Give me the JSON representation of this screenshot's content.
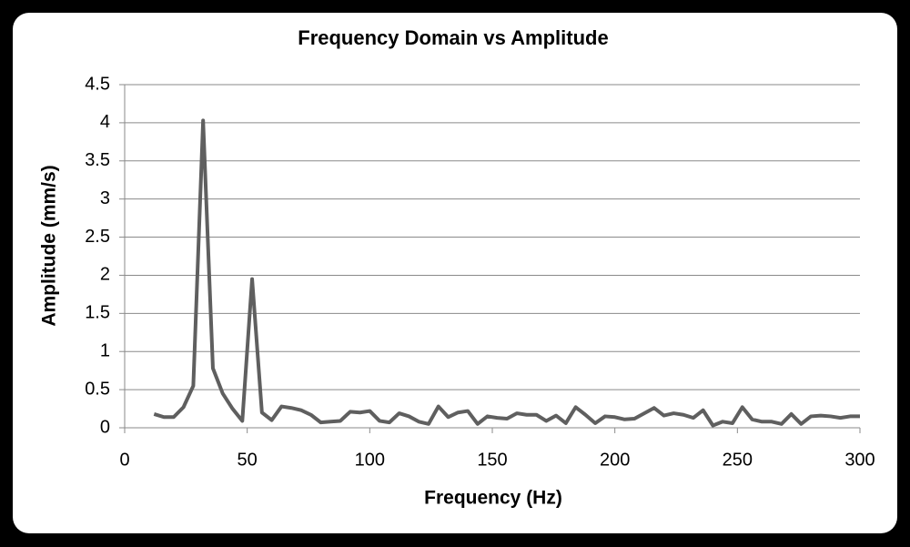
{
  "chart_data": {
    "type": "line",
    "title": "Frequency Domain vs Amplitude",
    "x_label": "Frequency (Hz)",
    "y_label": "Amplitude (mm/s)",
    "xlim": [
      0,
      300
    ],
    "xticks": [
      0,
      50,
      100,
      150,
      200,
      250,
      300
    ],
    "ylim": [
      0,
      4.5
    ],
    "yticks": [
      0,
      0.5,
      1,
      1.5,
      2,
      2.5,
      3,
      3.5,
      4,
      4.5
    ],
    "grid": true,
    "series": [
      {
        "color": "#5f5f5f",
        "x": [
          12,
          16,
          20,
          24,
          28,
          32,
          36,
          40,
          44,
          48,
          52,
          56,
          60,
          64,
          68,
          72,
          76,
          80,
          84,
          88,
          92,
          96,
          100,
          104,
          108,
          112,
          116,
          120,
          124,
          128,
          132,
          136,
          140,
          144,
          148,
          152,
          156,
          160,
          164,
          168,
          172,
          176,
          180,
          184,
          188,
          192,
          196,
          200,
          204,
          208,
          212,
          216,
          220,
          224,
          228,
          232,
          236,
          240,
          244,
          248,
          252,
          256,
          260,
          264,
          268,
          272,
          276,
          280,
          284,
          288,
          292,
          296,
          300
        ],
        "values": [
          0.18,
          0.14,
          0.14,
          0.27,
          0.55,
          4.03,
          0.78,
          0.45,
          0.25,
          0.09,
          1.95,
          0.2,
          0.1,
          0.28,
          0.26,
          0.23,
          0.17,
          0.07,
          0.08,
          0.09,
          0.21,
          0.2,
          0.22,
          0.09,
          0.07,
          0.19,
          0.15,
          0.08,
          0.05,
          0.28,
          0.14,
          0.2,
          0.22,
          0.05,
          0.15,
          0.13,
          0.12,
          0.19,
          0.17,
          0.17,
          0.09,
          0.16,
          0.06,
          0.27,
          0.17,
          0.06,
          0.15,
          0.14,
          0.11,
          0.12,
          0.19,
          0.26,
          0.16,
          0.19,
          0.17,
          0.13,
          0.23,
          0.03,
          0.08,
          0.06,
          0.27,
          0.11,
          0.08,
          0.08,
          0.05,
          0.18,
          0.05,
          0.15,
          0.16,
          0.15,
          0.13,
          0.15,
          0.15
        ]
      }
    ]
  }
}
